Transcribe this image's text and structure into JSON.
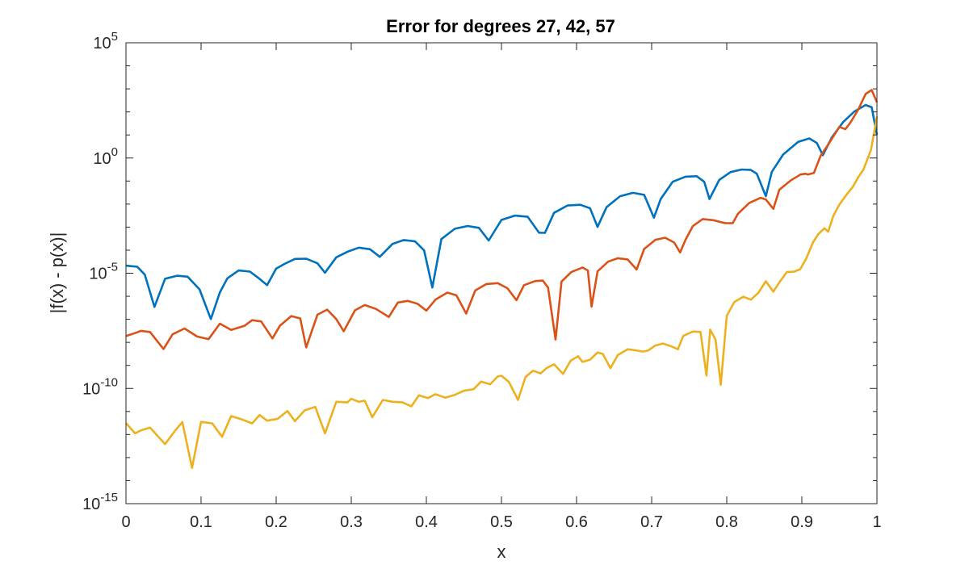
{
  "chart_data": {
    "type": "line",
    "title": "Error for degrees 27, 42, 57",
    "xlabel": "x",
    "ylabel": "|f(x) - p(x)|",
    "yscale": "log",
    "xlim": [
      0,
      1
    ],
    "ylim": [
      1e-15,
      100000.0
    ],
    "xticks": [
      0,
      0.1,
      0.2,
      0.3,
      0.4,
      0.5,
      0.6,
      0.7,
      0.8,
      0.9,
      1
    ],
    "xtick_labels": [
      "0",
      "0.1",
      "0.2",
      "0.3",
      "0.4",
      "0.5",
      "0.6",
      "0.7",
      "0.8",
      "0.9",
      "1"
    ],
    "yticks": [
      {
        "value": 100000.0,
        "base": "10",
        "exp": "5"
      },
      {
        "value": 1,
        "base": "10",
        "exp": "0"
      },
      {
        "value": 1e-05,
        "base": "10",
        "exp": "-5"
      },
      {
        "value": 1e-10,
        "base": "10",
        "exp": "-10"
      },
      {
        "value": 1e-15,
        "base": "10",
        "exp": "-15"
      }
    ],
    "grid": false,
    "legend": "none",
    "series": [
      {
        "color": "#0072BD",
        "points": [
          [
            0,
            -4.67
          ],
          [
            0.015,
            -4.72
          ],
          [
            0.025,
            -5.06
          ],
          [
            0.038,
            -6.46
          ],
          [
            0.052,
            -5.24
          ],
          [
            0.068,
            -5.11
          ],
          [
            0.082,
            -5.15
          ],
          [
            0.098,
            -5.7
          ],
          [
            0.113,
            -6.99
          ],
          [
            0.125,
            -5.83
          ],
          [
            0.135,
            -5.22
          ],
          [
            0.15,
            -4.88
          ],
          [
            0.165,
            -4.93
          ],
          [
            0.175,
            -5.17
          ],
          [
            0.188,
            -5.52
          ],
          [
            0.2,
            -4.8
          ],
          [
            0.212,
            -4.58
          ],
          [
            0.225,
            -4.38
          ],
          [
            0.24,
            -4.37
          ],
          [
            0.255,
            -4.57
          ],
          [
            0.265,
            -4.98
          ],
          [
            0.28,
            -4.31
          ],
          [
            0.295,
            -4.07
          ],
          [
            0.31,
            -3.89
          ],
          [
            0.325,
            -3.96
          ],
          [
            0.338,
            -4.29
          ],
          [
            0.355,
            -3.73
          ],
          [
            0.37,
            -3.56
          ],
          [
            0.385,
            -3.62
          ],
          [
            0.397,
            -4.01
          ],
          [
            0.408,
            -5.62
          ],
          [
            0.42,
            -3.52
          ],
          [
            0.438,
            -3.07
          ],
          [
            0.455,
            -2.95
          ],
          [
            0.47,
            -3.03
          ],
          [
            0.483,
            -3.58
          ],
          [
            0.5,
            -2.69
          ],
          [
            0.518,
            -2.5
          ],
          [
            0.535,
            -2.55
          ],
          [
            0.55,
            -3.24
          ],
          [
            0.558,
            -3.25
          ],
          [
            0.57,
            -2.38
          ],
          [
            0.588,
            -2.06
          ],
          [
            0.605,
            -2.03
          ],
          [
            0.618,
            -2.18
          ],
          [
            0.628,
            -2.99
          ],
          [
            0.64,
            -2.13
          ],
          [
            0.658,
            -1.66
          ],
          [
            0.675,
            -1.51
          ],
          [
            0.69,
            -1.6
          ],
          [
            0.703,
            -2.59
          ],
          [
            0.712,
            -1.78
          ],
          [
            0.728,
            -1.03
          ],
          [
            0.745,
            -0.81
          ],
          [
            0.76,
            -0.79
          ],
          [
            0.77,
            -1.03
          ],
          [
            0.777,
            -1.78
          ],
          [
            0.79,
            -0.95
          ],
          [
            0.805,
            -0.61
          ],
          [
            0.82,
            -0.5
          ],
          [
            0.832,
            -0.52
          ],
          [
            0.84,
            -0.68
          ],
          [
            0.852,
            -1.66
          ],
          [
            0.86,
            -0.6
          ],
          [
            0.875,
            0.15
          ],
          [
            0.895,
            0.7
          ],
          [
            0.91,
            0.85
          ],
          [
            0.92,
            0.65
          ],
          [
            0.928,
            0.12
          ],
          [
            0.94,
            0.9
          ],
          [
            0.955,
            1.56
          ],
          [
            0.97,
            2.02
          ],
          [
            0.985,
            2.3
          ],
          [
            0.993,
            2.2
          ],
          [
            1,
            1.0
          ]
        ]
      },
      {
        "color": "#D95319",
        "points": [
          [
            0,
            -7.73
          ],
          [
            0.012,
            -7.6
          ],
          [
            0.02,
            -7.5
          ],
          [
            0.032,
            -7.55
          ],
          [
            0.05,
            -8.29
          ],
          [
            0.062,
            -7.65
          ],
          [
            0.078,
            -7.4
          ],
          [
            0.095,
            -7.75
          ],
          [
            0.11,
            -7.86
          ],
          [
            0.125,
            -7.19
          ],
          [
            0.14,
            -7.46
          ],
          [
            0.158,
            -7.28
          ],
          [
            0.168,
            -7.04
          ],
          [
            0.18,
            -7.09
          ],
          [
            0.195,
            -7.83
          ],
          [
            0.205,
            -7.28
          ],
          [
            0.22,
            -6.86
          ],
          [
            0.232,
            -6.96
          ],
          [
            0.24,
            -8.22
          ],
          [
            0.255,
            -6.8
          ],
          [
            0.268,
            -6.58
          ],
          [
            0.28,
            -6.99
          ],
          [
            0.29,
            -7.52
          ],
          [
            0.305,
            -6.61
          ],
          [
            0.318,
            -6.38
          ],
          [
            0.333,
            -6.55
          ],
          [
            0.35,
            -6.9
          ],
          [
            0.362,
            -6.27
          ],
          [
            0.375,
            -6.2
          ],
          [
            0.388,
            -6.32
          ],
          [
            0.4,
            -6.62
          ],
          [
            0.412,
            -6.15
          ],
          [
            0.428,
            -5.84
          ],
          [
            0.44,
            -5.96
          ],
          [
            0.453,
            -6.75
          ],
          [
            0.465,
            -5.75
          ],
          [
            0.48,
            -5.47
          ],
          [
            0.495,
            -5.43
          ],
          [
            0.508,
            -5.65
          ],
          [
            0.52,
            -6.17
          ],
          [
            0.53,
            -5.52
          ],
          [
            0.545,
            -5.34
          ],
          [
            0.555,
            -5.32
          ],
          [
            0.562,
            -5.62
          ],
          [
            0.572,
            -7.88
          ],
          [
            0.58,
            -5.36
          ],
          [
            0.593,
            -4.95
          ],
          [
            0.608,
            -4.75
          ],
          [
            0.615,
            -4.88
          ],
          [
            0.62,
            -6.45
          ],
          [
            0.628,
            -4.92
          ],
          [
            0.642,
            -4.5
          ],
          [
            0.655,
            -4.35
          ],
          [
            0.668,
            -4.4
          ],
          [
            0.68,
            -4.84
          ],
          [
            0.69,
            -3.95
          ],
          [
            0.705,
            -3.55
          ],
          [
            0.718,
            -3.46
          ],
          [
            0.73,
            -3.67
          ],
          [
            0.738,
            -4.1
          ],
          [
            0.745,
            -3.55
          ],
          [
            0.755,
            -2.95
          ],
          [
            0.768,
            -2.65
          ],
          [
            0.782,
            -2.7
          ],
          [
            0.798,
            -2.83
          ],
          [
            0.808,
            -2.83
          ],
          [
            0.815,
            -2.42
          ],
          [
            0.83,
            -1.95
          ],
          [
            0.845,
            -1.73
          ],
          [
            0.852,
            -1.8
          ],
          [
            0.862,
            -2.21
          ],
          [
            0.87,
            -1.38
          ],
          [
            0.885,
            -0.98
          ],
          [
            0.898,
            -0.72
          ],
          [
            0.905,
            -0.68
          ],
          [
            0.908,
            -0.72
          ],
          [
            0.916,
            -0.65
          ],
          [
            0.925,
            0.1
          ],
          [
            0.935,
            0.58
          ],
          [
            0.95,
            1.35
          ],
          [
            0.958,
            1.25
          ],
          [
            0.965,
            1.55
          ],
          [
            0.975,
            2.1
          ],
          [
            0.985,
            2.78
          ],
          [
            0.993,
            2.95
          ],
          [
            1,
            2.42
          ]
        ]
      },
      {
        "color": "#EDB120",
        "points": [
          [
            0,
            -11.5
          ],
          [
            0.012,
            -11.95
          ],
          [
            0.02,
            -11.82
          ],
          [
            0.032,
            -11.7
          ],
          [
            0.052,
            -12.42
          ],
          [
            0.065,
            -11.85
          ],
          [
            0.075,
            -11.46
          ],
          [
            0.088,
            -13.45
          ],
          [
            0.1,
            -11.45
          ],
          [
            0.115,
            -11.52
          ],
          [
            0.128,
            -12.1
          ],
          [
            0.14,
            -11.2
          ],
          [
            0.155,
            -11.35
          ],
          [
            0.168,
            -11.52
          ],
          [
            0.178,
            -11.15
          ],
          [
            0.188,
            -11.4
          ],
          [
            0.202,
            -11.32
          ],
          [
            0.215,
            -10.98
          ],
          [
            0.225,
            -11.42
          ],
          [
            0.238,
            -10.95
          ],
          [
            0.252,
            -10.8
          ],
          [
            0.265,
            -11.95
          ],
          [
            0.28,
            -10.58
          ],
          [
            0.295,
            -10.6
          ],
          [
            0.3,
            -10.45
          ],
          [
            0.31,
            -10.58
          ],
          [
            0.318,
            -10.53
          ],
          [
            0.328,
            -11.25
          ],
          [
            0.342,
            -10.5
          ],
          [
            0.355,
            -10.58
          ],
          [
            0.368,
            -10.6
          ],
          [
            0.38,
            -10.78
          ],
          [
            0.39,
            -10.3
          ],
          [
            0.402,
            -10.42
          ],
          [
            0.412,
            -10.25
          ],
          [
            0.425,
            -10.4
          ],
          [
            0.438,
            -10.28
          ],
          [
            0.45,
            -10.1
          ],
          [
            0.463,
            -10.03
          ],
          [
            0.473,
            -9.7
          ],
          [
            0.485,
            -9.82
          ],
          [
            0.495,
            -9.48
          ],
          [
            0.5,
            -9.45
          ],
          [
            0.51,
            -9.72
          ],
          [
            0.522,
            -10.5
          ],
          [
            0.532,
            -9.5
          ],
          [
            0.542,
            -9.23
          ],
          [
            0.552,
            -9.35
          ],
          [
            0.56,
            -9.12
          ],
          [
            0.57,
            -8.95
          ],
          [
            0.582,
            -9.37
          ],
          [
            0.592,
            -8.8
          ],
          [
            0.602,
            -8.6
          ],
          [
            0.608,
            -8.85
          ],
          [
            0.618,
            -8.75
          ],
          [
            0.628,
            -8.44
          ],
          [
            0.635,
            -8.5
          ],
          [
            0.645,
            -9.12
          ],
          [
            0.655,
            -8.55
          ],
          [
            0.668,
            -8.3
          ],
          [
            0.678,
            -8.34
          ],
          [
            0.688,
            -8.4
          ],
          [
            0.695,
            -8.36
          ],
          [
            0.705,
            -8.14
          ],
          [
            0.715,
            -8.05
          ],
          [
            0.725,
            -8.16
          ],
          [
            0.735,
            -8.3
          ],
          [
            0.742,
            -7.72
          ],
          [
            0.755,
            -7.53
          ],
          [
            0.765,
            -7.55
          ],
          [
            0.773,
            -9.44
          ],
          [
            0.778,
            -7.45
          ],
          [
            0.785,
            -7.88
          ],
          [
            0.792,
            -9.84
          ],
          [
            0.8,
            -6.85
          ],
          [
            0.81,
            -6.25
          ],
          [
            0.822,
            -6.02
          ],
          [
            0.832,
            -6.15
          ],
          [
            0.842,
            -5.85
          ],
          [
            0.852,
            -5.35
          ],
          [
            0.862,
            -5.8
          ],
          [
            0.87,
            -5.4
          ],
          [
            0.88,
            -4.95
          ],
          [
            0.89,
            -4.93
          ],
          [
            0.898,
            -4.82
          ],
          [
            0.906,
            -4.35
          ],
          [
            0.915,
            -3.65
          ],
          [
            0.922,
            -3.3
          ],
          [
            0.93,
            -3.05
          ],
          [
            0.935,
            -3.2
          ],
          [
            0.942,
            -2.5
          ],
          [
            0.95,
            -2.02
          ],
          [
            0.96,
            -1.57
          ],
          [
            0.968,
            -1.25
          ],
          [
            0.975,
            -0.84
          ],
          [
            0.982,
            -0.5
          ],
          [
            0.992,
            0.35
          ],
          [
            1,
            1.8
          ]
        ]
      }
    ]
  }
}
